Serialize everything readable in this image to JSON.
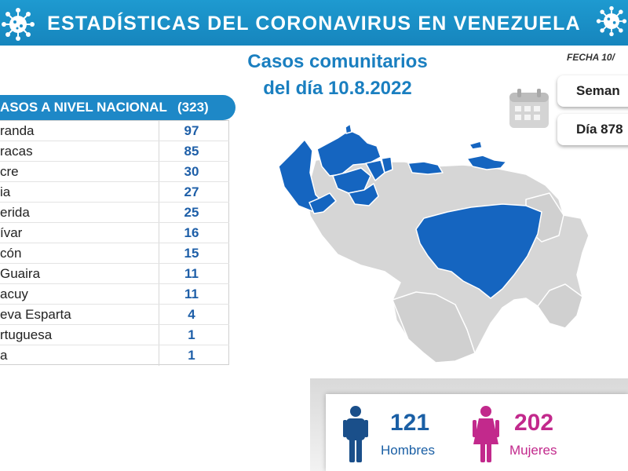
{
  "header": {
    "title": "ESTADÍSTICAS DEL CORONAVIRUS EN VENEZUELA"
  },
  "subtitle": {
    "line1": "Casos comunitarios",
    "line2": "del día 10.8.2022"
  },
  "fecha": {
    "label": "FECHA 10/"
  },
  "calendar": {
    "icon": "calendar-icon"
  },
  "semana": {
    "label": "Seman"
  },
  "dia": {
    "label": "Día 878"
  },
  "table": {
    "header": "ASOS A NIVEL NACIONAL",
    "total": "(323)",
    "rows": [
      {
        "state": "randa",
        "cases": "97"
      },
      {
        "state": "racas",
        "cases": "85"
      },
      {
        "state": "cre",
        "cases": "30"
      },
      {
        "state": "ia",
        "cases": "27"
      },
      {
        "state": "erida",
        "cases": "25"
      },
      {
        "state": "ívar",
        "cases": "16"
      },
      {
        "state": "cón",
        "cases": "15"
      },
      {
        "state": "Guaira",
        "cases": "11"
      },
      {
        "state": "acuy",
        "cases": "11"
      },
      {
        "state": "eva Esparta",
        "cases": "4"
      },
      {
        "state": "rtuguesa",
        "cases": "1"
      },
      {
        "state": "a",
        "cases": "1"
      }
    ]
  },
  "gender": {
    "men": {
      "count": "121",
      "label": "Hombres",
      "icon": "man-icon",
      "color": "#1a5fa5"
    },
    "women": {
      "count": "202",
      "label": "Mujeres",
      "icon": "woman-icon",
      "color": "#c2298c"
    }
  },
  "colors": {
    "banner": "#1a8fc8",
    "highlight_state": "#1565c0",
    "other_state": "#d6d6d6"
  }
}
